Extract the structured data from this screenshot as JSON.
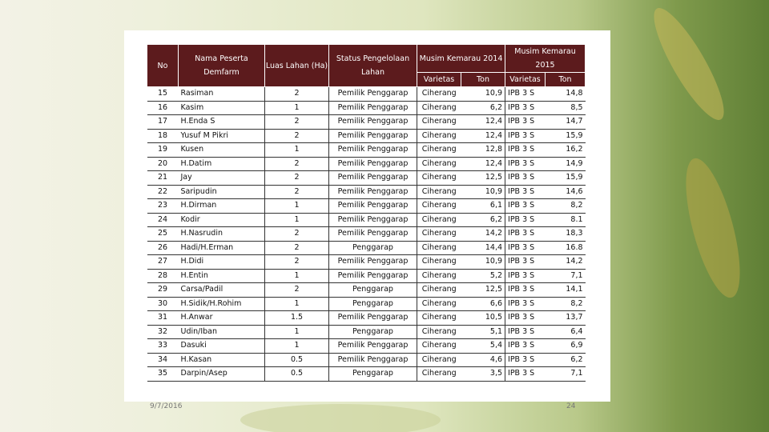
{
  "table": {
    "header": {
      "no": "No",
      "name": "Nama Peserta Demfarm",
      "area": "Luas Lahan (Ha)",
      "status": "Status Pengelolaan Lahan",
      "season1": "Musim Kemarau 2014",
      "season2": "Musim Kemarau 2015",
      "variety1": "Varietas",
      "ton1": "Ton",
      "variety2": "Varietas",
      "ton2": "Ton"
    },
    "rows": [
      [
        "15",
        "Rasiman",
        "2",
        "Pemilik Penggarap",
        "Ciherang",
        "10,9",
        "IPB 3 S",
        "14,8"
      ],
      [
        "16",
        "Kasim",
        "1",
        "Pemilik Penggarap",
        "Ciherang",
        "6,2",
        "IPB 3 S",
        "8,5"
      ],
      [
        "17",
        "H.Enda S",
        "2",
        "Pemilik Penggarap",
        "Ciherang",
        "12,4",
        "IPB 3 S",
        "14,7"
      ],
      [
        "18",
        "Yusuf M Pikri",
        "2",
        "Pemilik Penggarap",
        "Ciherang",
        "12,4",
        "IPB 3 S",
        "15,9"
      ],
      [
        "19",
        "Kusen",
        "1",
        "Pemilik Penggarap",
        "Ciherang",
        "12,8",
        "IPB 3 S",
        "16,2"
      ],
      [
        "20",
        "H.Datim",
        "2",
        "Pemilik Penggarap",
        "Ciherang",
        "12,4",
        "IPB 3 S",
        "14,9"
      ],
      [
        "21",
        "Jay",
        "2",
        "Pemilik Penggarap",
        "Ciherang",
        "12,5",
        "IPB 3 S",
        "15,9"
      ],
      [
        "22",
        "Saripudin",
        "2",
        "Pemilik Penggarap",
        "Ciherang",
        "10,9",
        "IPB 3 S",
        "14,6"
      ],
      [
        "23",
        "H.Dirman",
        "1",
        "Pemilik Penggarap",
        "Ciherang",
        "6,1",
        "IPB 3 S",
        "8,2"
      ],
      [
        "24",
        "Kodir",
        "1",
        "Pemilik Penggarap",
        "Ciherang",
        "6,2",
        "IPB 3 S",
        "8.1"
      ],
      [
        "25",
        "H.Nasrudin",
        "2",
        "Pemilik Penggarap",
        "Ciherang",
        "14,2",
        "IPB 3 S",
        "18,3"
      ],
      [
        "26",
        "Hadi/H.Erman",
        "2",
        "Penggarap",
        "Ciherang",
        "14,4",
        "IPB 3 S",
        "16.8"
      ],
      [
        "27",
        "H.Didi",
        "2",
        "Pemilik Penggarap",
        "Ciherang",
        "10,9",
        "IPB 3 S",
        "14,2"
      ],
      [
        "28",
        "H.Entin",
        "1",
        "Pemilik Penggarap",
        "Ciherang",
        "5,2",
        "IPB 3 S",
        "7,1"
      ],
      [
        "29",
        "Carsa/Padil",
        "2",
        "Penggarap",
        "Ciherang",
        "12,5",
        "IPB 3 S",
        "14,1"
      ],
      [
        "30",
        "H.Sidik/H.Rohim",
        "1",
        "Penggarap",
        "Ciherang",
        "6,6",
        "IPB 3 S",
        "8,2"
      ],
      [
        "31",
        "H.Anwar",
        "1.5",
        "Pemilik Penggarap",
        "Ciherang",
        "10,5",
        "IPB 3 S",
        "13,7"
      ],
      [
        "32",
        "Udin/Iban",
        "1",
        "Penggarap",
        "Ciherang",
        "5,1",
        "IPB 3 S",
        "6,4"
      ],
      [
        "33",
        "Dasuki",
        "1",
        "Pemilik Penggarap",
        "Ciherang",
        "5,4",
        "IPB 3 S",
        "6,9"
      ],
      [
        "34",
        "H.Kasan",
        "0.5",
        "Pemilik Penggarap",
        "Ciherang",
        "4,6",
        "IPB 3 S",
        "6,2"
      ],
      [
        "35",
        "Darpin/Asep",
        "0.5",
        "Penggarap",
        "Ciherang",
        "3,5",
        "IPB 3 S",
        "7,1"
      ]
    ]
  },
  "footer": {
    "date": "9/7/2016",
    "page": "24"
  }
}
